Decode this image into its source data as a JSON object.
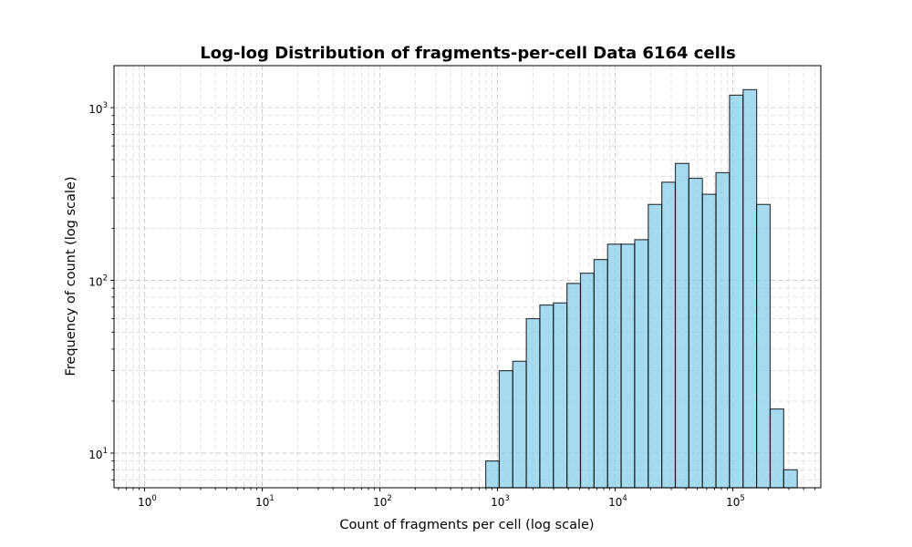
{
  "chart_data": {
    "type": "bar",
    "title": "Log-log Distribution of fragments-per-cell Data 6164 cells",
    "xlabel": "Count of fragments per cell (log scale)",
    "ylabel": "Frequency of count (log scale)",
    "xscale": "log",
    "yscale": "log",
    "xlim": [
      0.55,
      560000
    ],
    "ylim": [
      6.3,
      1750
    ],
    "grid": "both major and minor, dashed",
    "bar_color": "#87ceeb",
    "edge_color": "#000000",
    "x_ticks": [
      {
        "base": "10",
        "exp": "0",
        "value": 1
      },
      {
        "base": "10",
        "exp": "1",
        "value": 10
      },
      {
        "base": "10",
        "exp": "2",
        "value": 100
      },
      {
        "base": "10",
        "exp": "3",
        "value": 1000
      },
      {
        "base": "10",
        "exp": "4",
        "value": 10000
      },
      {
        "base": "10",
        "exp": "5",
        "value": 100000
      }
    ],
    "y_ticks": [
      {
        "base": "10",
        "exp": "1",
        "value": 10
      },
      {
        "base": "10",
        "exp": "2",
        "value": 100
      },
      {
        "base": "10",
        "exp": "3",
        "value": 1000
      }
    ],
    "bins": [
      {
        "x0": 794,
        "x1": 1035,
        "count": 9
      },
      {
        "x0": 1035,
        "x1": 1349,
        "count": 30
      },
      {
        "x0": 1349,
        "x1": 1759,
        "count": 34
      },
      {
        "x0": 1759,
        "x1": 2292,
        "count": 60
      },
      {
        "x0": 2292,
        "x1": 2988,
        "count": 72
      },
      {
        "x0": 2988,
        "x1": 3895,
        "count": 74
      },
      {
        "x0": 3895,
        "x1": 5078,
        "count": 96
      },
      {
        "x0": 5078,
        "x1": 6620,
        "count": 110
      },
      {
        "x0": 6620,
        "x1": 8630,
        "count": 132
      },
      {
        "x0": 8630,
        "x1": 11250,
        "count": 162
      },
      {
        "x0": 11250,
        "x1": 14665,
        "count": 162
      },
      {
        "x0": 14665,
        "x1": 19120,
        "count": 172
      },
      {
        "x0": 19120,
        "x1": 24920,
        "count": 275
      },
      {
        "x0": 24920,
        "x1": 32490,
        "count": 370
      },
      {
        "x0": 32490,
        "x1": 42360,
        "count": 475
      },
      {
        "x0": 42360,
        "x1": 55220,
        "count": 390
      },
      {
        "x0": 55220,
        "x1": 71980,
        "count": 315
      },
      {
        "x0": 71980,
        "x1": 93840,
        "count": 420
      },
      {
        "x0": 93840,
        "x1": 122330,
        "count": 1180
      },
      {
        "x0": 122330,
        "x1": 159470,
        "count": 1270
      },
      {
        "x0": 159470,
        "x1": 207900,
        "count": 275
      },
      {
        "x0": 207900,
        "x1": 271020,
        "count": 18
      },
      {
        "x0": 271020,
        "x1": 353310,
        "count": 8
      }
    ]
  }
}
